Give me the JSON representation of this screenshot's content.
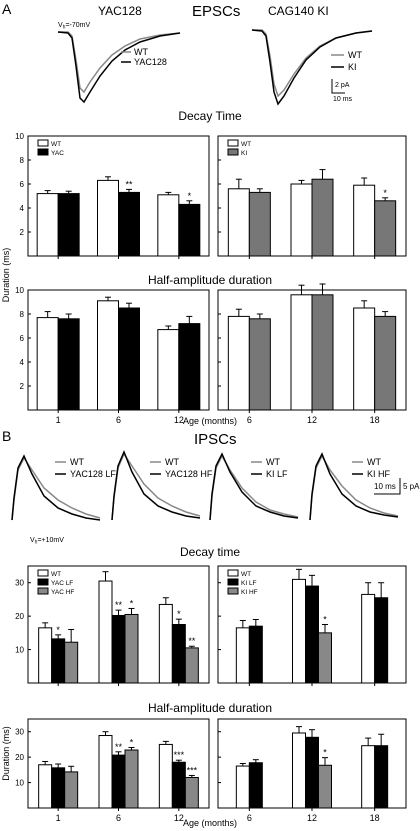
{
  "panels": {
    "a": "A",
    "b": "B"
  },
  "epsc": {
    "title": "EPSCs",
    "yac_title": "YAC128",
    "cag_title": "CAG140 KI",
    "vh_label": "V",
    "vh_sub": "h",
    "vh_value": "=-70mV",
    "legend_yac": [
      "WT",
      "YAC128"
    ],
    "legend_ki": [
      "WT",
      "KI"
    ],
    "scale_amp": "2 pA",
    "scale_time": "10 ms"
  },
  "ipsc": {
    "title": "IPSCs",
    "vh_label": "V",
    "vh_sub": "h",
    "vh_value": "=+10mV",
    "scale_amp": "5 pA",
    "scale_time": "10 ms",
    "trace_legends": [
      [
        "WT",
        "YAC128 LF"
      ],
      [
        "WT",
        "YAC128 HF"
      ],
      [
        "WT",
        "KI LF"
      ],
      [
        "WT",
        "KI HF"
      ]
    ]
  },
  "colors": {
    "wt": "#ffffff",
    "mutant": "#000000",
    "ki": "#777777",
    "hf": "#888888",
    "gray_trace": "#8a8a8a"
  },
  "chart_data": [
    {
      "type": "bar",
      "id": "epsc_yac_decay",
      "title": "Decay Time",
      "ylabel": "",
      "ylim": [
        0,
        10
      ],
      "yticks": [
        2,
        4,
        6,
        8,
        10
      ],
      "categories": [
        "1",
        "6",
        "12"
      ],
      "series": [
        {
          "name": "WT",
          "values": [
            5.2,
            6.3,
            5.1
          ],
          "errors": [
            0.25,
            0.3,
            0.2
          ]
        },
        {
          "name": "YAC",
          "values": [
            5.2,
            5.3,
            4.3
          ],
          "errors": [
            0.2,
            0.25,
            0.3
          ]
        }
      ],
      "annotations": [
        {
          "category": 1,
          "series": 1,
          "text": "**"
        },
        {
          "category": 2,
          "series": 1,
          "text": "*"
        }
      ]
    },
    {
      "type": "bar",
      "id": "epsc_ki_decay",
      "ylim": [
        0,
        10
      ],
      "yticks": [
        2,
        4,
        6,
        8,
        10
      ],
      "categories": [
        "6",
        "12",
        "18"
      ],
      "series": [
        {
          "name": "WT",
          "values": [
            5.6,
            6.0,
            5.9
          ],
          "errors": [
            0.8,
            0.3,
            0.6
          ]
        },
        {
          "name": "KI",
          "values": [
            5.3,
            6.4,
            4.6
          ],
          "errors": [
            0.3,
            0.8,
            0.25
          ]
        }
      ],
      "annotations": [
        {
          "category": 2,
          "series": 1,
          "text": "*"
        }
      ]
    },
    {
      "type": "bar",
      "id": "epsc_yac_half",
      "title": "Half-amplitude duration",
      "ylabel": "Duration (ms)",
      "ylim": [
        0,
        10
      ],
      "yticks": [
        2,
        4,
        6,
        8,
        10
      ],
      "categories": [
        "1",
        "6",
        "12"
      ],
      "series": [
        {
          "name": "WT",
          "values": [
            7.7,
            9.1,
            6.7
          ],
          "errors": [
            0.5,
            0.3,
            0.3
          ]
        },
        {
          "name": "YAC",
          "values": [
            7.6,
            8.5,
            7.2
          ],
          "errors": [
            0.4,
            0.4,
            0.6
          ]
        }
      ]
    },
    {
      "type": "bar",
      "id": "epsc_ki_half",
      "ylim": [
        0,
        10
      ],
      "yticks": [
        2,
        4,
        6,
        8,
        10
      ],
      "categories": [
        "6",
        "12",
        "18"
      ],
      "series": [
        {
          "name": "WT",
          "values": [
            7.8,
            9.6,
            8.5
          ],
          "errors": [
            0.6,
            0.8,
            0.6
          ]
        },
        {
          "name": "KI",
          "values": [
            7.6,
            9.6,
            7.8
          ],
          "errors": [
            0.4,
            0.9,
            0.4
          ]
        }
      ]
    },
    {
      "type": "bar",
      "id": "ipsc_yac_decay",
      "title": "Decay time",
      "ylim": [
        0,
        35
      ],
      "yticks": [
        10,
        20,
        30
      ],
      "categories": [
        "1",
        "6",
        "12"
      ],
      "series": [
        {
          "name": "WT",
          "values": [
            16.5,
            30.5,
            23.5
          ],
          "errors": [
            1.5,
            2.8,
            2.0
          ]
        },
        {
          "name": "YAC LF",
          "values": [
            13.2,
            20.2,
            17.5
          ],
          "errors": [
            1.2,
            1.6,
            1.6
          ]
        },
        {
          "name": "YAC HF",
          "values": [
            12.2,
            20.5,
            10.5
          ],
          "errors": [
            3.8,
            1.8,
            0.5
          ]
        }
      ],
      "annotations": [
        {
          "category": 0,
          "series": 1,
          "text": "*"
        },
        {
          "category": 1,
          "series": 1,
          "text": "**"
        },
        {
          "category": 1,
          "series": 2,
          "text": "*"
        },
        {
          "category": 2,
          "series": 1,
          "text": "*"
        },
        {
          "category": 2,
          "series": 2,
          "text": "**"
        }
      ]
    },
    {
      "type": "bar",
      "id": "ipsc_ki_decay",
      "ylim": [
        0,
        35
      ],
      "yticks": [
        10,
        20,
        30
      ],
      "categories": [
        "6",
        "12",
        "18"
      ],
      "series": [
        {
          "name": "WT",
          "values": [
            16.5,
            31.0,
            26.5
          ],
          "errors": [
            2.2,
            3.0,
            3.5
          ]
        },
        {
          "name": "KI LF",
          "values": [
            17.0,
            29.0,
            25.5
          ],
          "errors": [
            2.0,
            3.2,
            4.5
          ]
        },
        {
          "name": "KI HF",
          "values": [
            null,
            15.0,
            null
          ],
          "errors": [
            null,
            2.5,
            null
          ]
        }
      ],
      "annotations": [
        {
          "category": 1,
          "series": 2,
          "text": "*"
        }
      ]
    },
    {
      "type": "bar",
      "id": "ipsc_yac_half",
      "title": "Half-amplitude duration",
      "ylabel": "Duration (ms)",
      "ylim": [
        0,
        35
      ],
      "yticks": [
        10,
        20,
        30
      ],
      "categories": [
        "1",
        "6",
        "12"
      ],
      "xlabel": "Age (months)",
      "series": [
        {
          "name": "WT",
          "values": [
            17.0,
            28.5,
            25.0
          ],
          "errors": [
            1.3,
            1.5,
            1.2
          ]
        },
        {
          "name": "YAC LF",
          "values": [
            15.8,
            20.8,
            18.0
          ],
          "errors": [
            1.5,
            1.3,
            0.8
          ]
        },
        {
          "name": "YAC HF",
          "values": [
            14.2,
            22.8,
            12.0
          ],
          "errors": [
            2.2,
            1.0,
            0.8
          ]
        }
      ],
      "annotations": [
        {
          "category": 1,
          "series": 1,
          "text": "**"
        },
        {
          "category": 1,
          "series": 2,
          "text": "*"
        },
        {
          "category": 2,
          "series": 1,
          "text": "***"
        },
        {
          "category": 2,
          "series": 2,
          "text": "***"
        }
      ]
    },
    {
      "type": "bar",
      "id": "ipsc_ki_half",
      "ylim": [
        0,
        35
      ],
      "yticks": [
        10,
        20,
        30
      ],
      "categories": [
        "6",
        "12",
        "18"
      ],
      "series": [
        {
          "name": "WT",
          "values": [
            16.5,
            29.5,
            24.5
          ],
          "errors": [
            1.0,
            2.5,
            3.0
          ]
        },
        {
          "name": "KI LF",
          "values": [
            17.8,
            27.8,
            24.5
          ],
          "errors": [
            1.2,
            3.0,
            4.5
          ]
        },
        {
          "name": "KI HF",
          "values": [
            null,
            16.8,
            null
          ],
          "errors": [
            null,
            3.0,
            null
          ]
        }
      ],
      "annotations": [
        {
          "category": 1,
          "series": 2,
          "text": "*"
        }
      ]
    }
  ]
}
